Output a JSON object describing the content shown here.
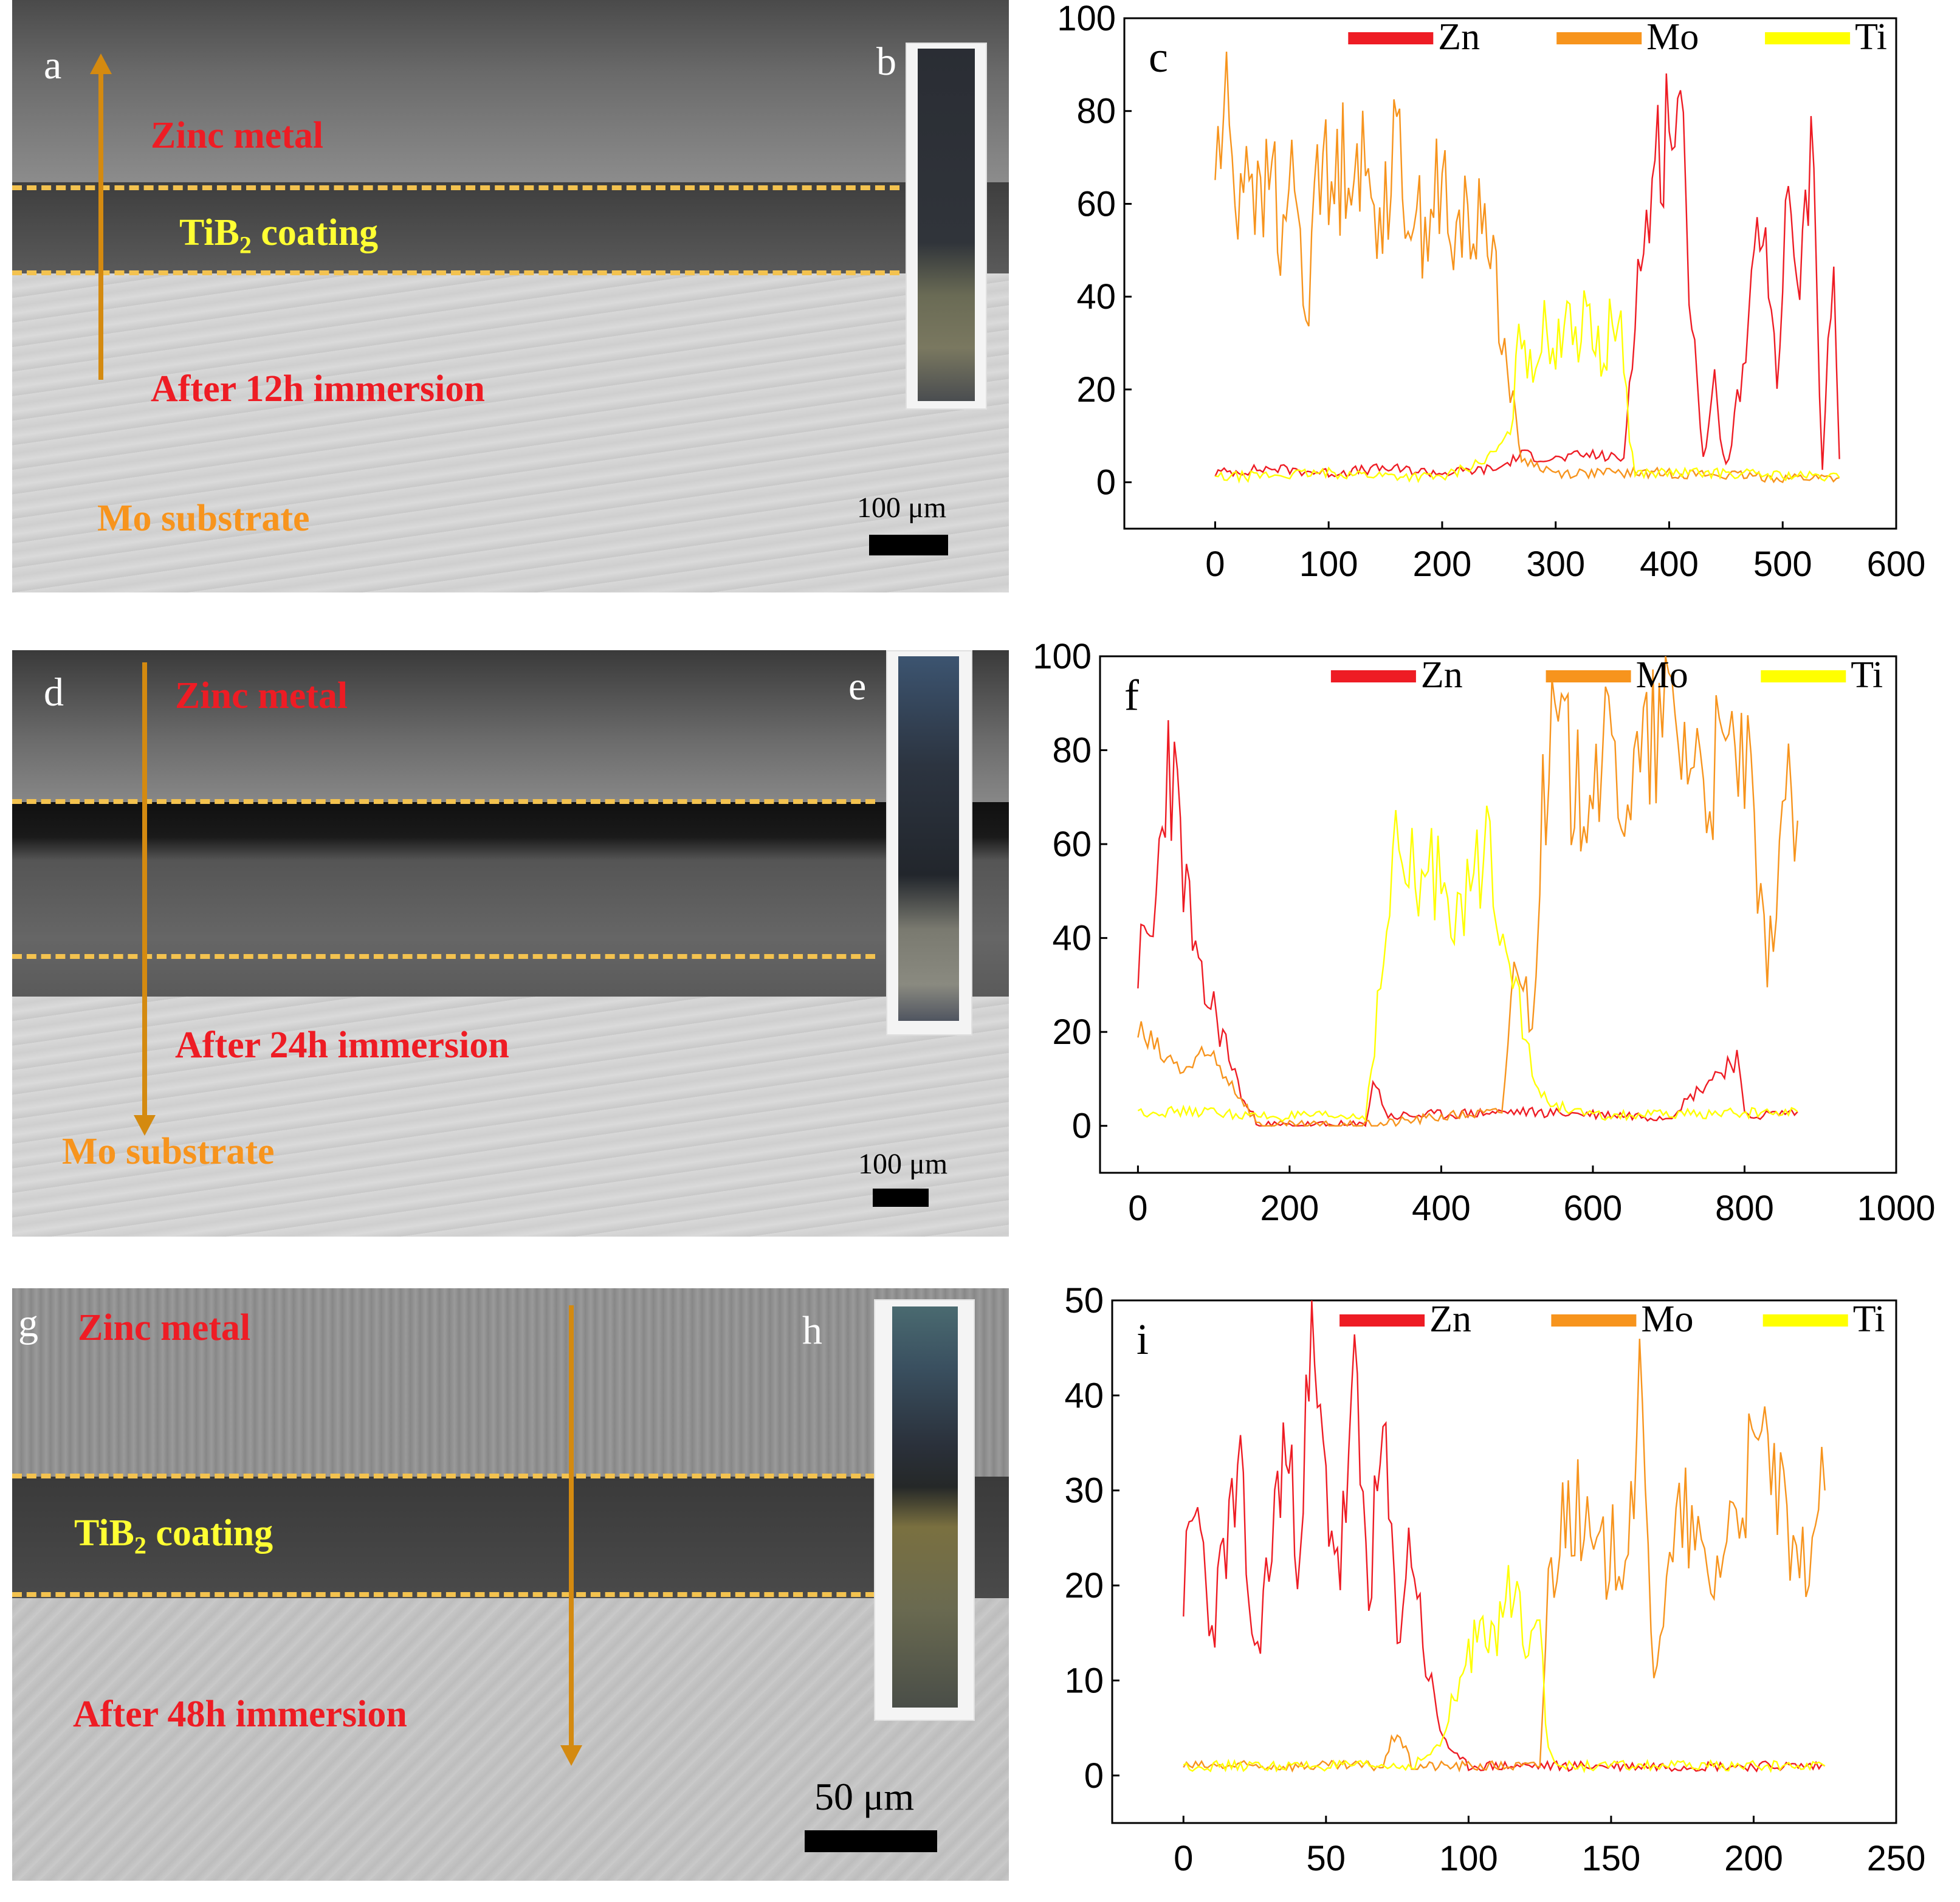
{
  "panels": {
    "a": {
      "letter": "a",
      "zinc": "Zinc metal",
      "coating_main": "TiB",
      "coating_sub": "2",
      "coating_rest": " coating",
      "immersion": "After 12h immersion",
      "substrate": "Mo substrate",
      "scale": "100 μm"
    },
    "b": {
      "letter": "b"
    },
    "d": {
      "letter": "d",
      "zinc": "Zinc metal",
      "immersion": "After 24h immersion",
      "substrate": "Mo substrate",
      "scale": "100 μm"
    },
    "e": {
      "letter": "e"
    },
    "g": {
      "letter": "g",
      "zinc": "Zinc metal",
      "coating_main": "TiB",
      "coating_sub": "2",
      "coating_rest": " coating",
      "immersion": "After 48h immersion",
      "scale": "50 μm"
    },
    "h": {
      "letter": "h"
    }
  },
  "colors": {
    "zn": "#ee1c24",
    "mo": "#f7941d",
    "ti": "#ffff00",
    "arrow": "#d48a10",
    "dash": "#f3c24f"
  },
  "chart_data": [
    {
      "type": "line",
      "letter": "c",
      "xlim": [
        -80,
        600
      ],
      "ylim": [
        -10,
        100
      ],
      "xticks": [
        0,
        100,
        200,
        300,
        400,
        500,
        600
      ],
      "yticks": [
        0,
        20,
        40,
        60,
        80,
        100
      ],
      "legend": "top",
      "series": [
        {
          "name": "Zn",
          "color": "#ee1c24",
          "points": [
            [
              0,
              2
            ],
            [
              50,
              3
            ],
            [
              100,
              2
            ],
            [
              150,
              3
            ],
            [
              200,
              2
            ],
            [
              250,
              3
            ],
            [
              270,
              6
            ],
            [
              300,
              5
            ],
            [
              330,
              6
            ],
            [
              360,
              5
            ],
            [
              370,
              40
            ],
            [
              390,
              70
            ],
            [
              400,
              82
            ],
            [
              410,
              75
            ],
            [
              420,
              40
            ],
            [
              430,
              5
            ],
            [
              440,
              20
            ],
            [
              450,
              3
            ],
            [
              470,
              30
            ],
            [
              480,
              60
            ],
            [
              495,
              20
            ],
            [
              505,
              70
            ],
            [
              515,
              40
            ],
            [
              525,
              75
            ],
            [
              535,
              3
            ],
            [
              545,
              48
            ],
            [
              550,
              5
            ]
          ]
        },
        {
          "name": "Mo",
          "color": "#f7941d",
          "points": [
            [
              0,
              68
            ],
            [
              10,
              80
            ],
            [
              20,
              62
            ],
            [
              30,
              75
            ],
            [
              40,
              55
            ],
            [
              50,
              70
            ],
            [
              60,
              48
            ],
            [
              70,
              72
            ],
            [
              80,
              30
            ],
            [
              90,
              78
            ],
            [
              100,
              60
            ],
            [
              120,
              75
            ],
            [
              140,
              58
            ],
            [
              160,
              70
            ],
            [
              180,
              55
            ],
            [
              200,
              65
            ],
            [
              210,
              45
            ],
            [
              220,
              62
            ],
            [
              230,
              52
            ],
            [
              240,
              60
            ],
            [
              250,
              38
            ],
            [
              260,
              20
            ],
            [
              270,
              5
            ],
            [
              300,
              2
            ],
            [
              400,
              2
            ],
            [
              500,
              1
            ],
            [
              550,
              1
            ]
          ]
        },
        {
          "name": "Ti",
          "color": "#ffff00",
          "points": [
            [
              0,
              1
            ],
            [
              100,
              2
            ],
            [
              200,
              1
            ],
            [
              240,
              5
            ],
            [
              260,
              10
            ],
            [
              270,
              35
            ],
            [
              280,
              20
            ],
            [
              290,
              40
            ],
            [
              300,
              25
            ],
            [
              310,
              42
            ],
            [
              320,
              30
            ],
            [
              330,
              38
            ],
            [
              340,
              25
            ],
            [
              350,
              35
            ],
            [
              360,
              30
            ],
            [
              365,
              10
            ],
            [
              370,
              2
            ],
            [
              450,
              2
            ],
            [
              550,
              1
            ]
          ]
        }
      ]
    },
    {
      "type": "line",
      "letter": "f",
      "xlim": [
        -50,
        1000
      ],
      "ylim": [
        -10,
        100
      ],
      "xticks": [
        0,
        200,
        400,
        600,
        800,
        1000
      ],
      "yticks": [
        0,
        20,
        40,
        60,
        80,
        100
      ],
      "legend": "top",
      "series": [
        {
          "name": "Zn",
          "color": "#ee1c24",
          "points": [
            [
              0,
              35
            ],
            [
              20,
              40
            ],
            [
              40,
              82
            ],
            [
              60,
              55
            ],
            [
              80,
              30
            ],
            [
              100,
              25
            ],
            [
              120,
              15
            ],
            [
              140,
              5
            ],
            [
              160,
              0
            ],
            [
              300,
              0
            ],
            [
              310,
              10
            ],
            [
              330,
              2
            ],
            [
              500,
              3
            ],
            [
              700,
              2
            ],
            [
              790,
              15
            ],
            [
              800,
              2
            ],
            [
              870,
              3
            ]
          ]
        },
        {
          "name": "Mo",
          "color": "#f7941d",
          "points": [
            [
              0,
              20
            ],
            [
              30,
              15
            ],
            [
              60,
              12
            ],
            [
              100,
              15
            ],
            [
              140,
              5
            ],
            [
              160,
              0
            ],
            [
              300,
              0
            ],
            [
              400,
              2
            ],
            [
              480,
              3
            ],
            [
              500,
              40
            ],
            [
              520,
              20
            ],
            [
              530,
              60
            ],
            [
              550,
              85
            ],
            [
              580,
              70
            ],
            [
              600,
              80
            ],
            [
              650,
              72
            ],
            [
              700,
              88
            ],
            [
              750,
              75
            ],
            [
              800,
              80
            ],
            [
              830,
              30
            ],
            [
              850,
              70
            ],
            [
              870,
              65
            ]
          ]
        },
        {
          "name": "Ti",
          "color": "#ffff00",
          "points": [
            [
              0,
              3
            ],
            [
              100,
              3
            ],
            [
              150,
              2
            ],
            [
              300,
              2
            ],
            [
              320,
              30
            ],
            [
              340,
              58
            ],
            [
              370,
              50
            ],
            [
              400,
              55
            ],
            [
              430,
              45
            ],
            [
              460,
              60
            ],
            [
              490,
              40
            ],
            [
              520,
              10
            ],
            [
              540,
              5
            ],
            [
              600,
              2
            ],
            [
              870,
              3
            ]
          ]
        }
      ]
    },
    {
      "type": "line",
      "letter": "i",
      "xlim": [
        -25,
        250
      ],
      "ylim": [
        -5,
        50
      ],
      "xticks": [
        0,
        50,
        100,
        150,
        200,
        250
      ],
      "yticks": [
        0,
        10,
        20,
        30,
        40,
        50
      ],
      "legend": "top",
      "series": [
        {
          "name": "Zn",
          "color": "#ee1c24",
          "points": [
            [
              0,
              20
            ],
            [
              5,
              28
            ],
            [
              10,
              15
            ],
            [
              15,
              25
            ],
            [
              20,
              30
            ],
            [
              25,
              12
            ],
            [
              30,
              22
            ],
            [
              35,
              35
            ],
            [
              40,
              25
            ],
            [
              45,
              43
            ],
            [
              50,
              30
            ],
            [
              55,
              22
            ],
            [
              60,
              40
            ],
            [
              65,
              20
            ],
            [
              70,
              35
            ],
            [
              75,
              15
            ],
            [
              80,
              25
            ],
            [
              85,
              12
            ],
            [
              90,
              5
            ],
            [
              95,
              2
            ],
            [
              100,
              1
            ],
            [
              150,
              1
            ],
            [
              200,
              1
            ],
            [
              225,
              1
            ]
          ]
        },
        {
          "name": "Mo",
          "color": "#f7941d",
          "points": [
            [
              0,
              1
            ],
            [
              70,
              1
            ],
            [
              75,
              5
            ],
            [
              80,
              1
            ],
            [
              125,
              1
            ],
            [
              128,
              20
            ],
            [
              135,
              30
            ],
            [
              145,
              22
            ],
            [
              155,
              25
            ],
            [
              160,
              38
            ],
            [
              165,
              12
            ],
            [
              175,
              28
            ],
            [
              185,
              20
            ],
            [
              195,
              30
            ],
            [
              205,
              35
            ],
            [
              215,
              20
            ],
            [
              225,
              30
            ]
          ]
        },
        {
          "name": "Ti",
          "color": "#ffff00",
          "points": [
            [
              0,
              1
            ],
            [
              80,
              1
            ],
            [
              90,
              3
            ],
            [
              95,
              8
            ],
            [
              100,
              12
            ],
            [
              105,
              18
            ],
            [
              110,
              14
            ],
            [
              115,
              20
            ],
            [
              120,
              15
            ],
            [
              125,
              20
            ],
            [
              127,
              5
            ],
            [
              130,
              1
            ],
            [
              225,
              1
            ]
          ]
        }
      ]
    }
  ]
}
